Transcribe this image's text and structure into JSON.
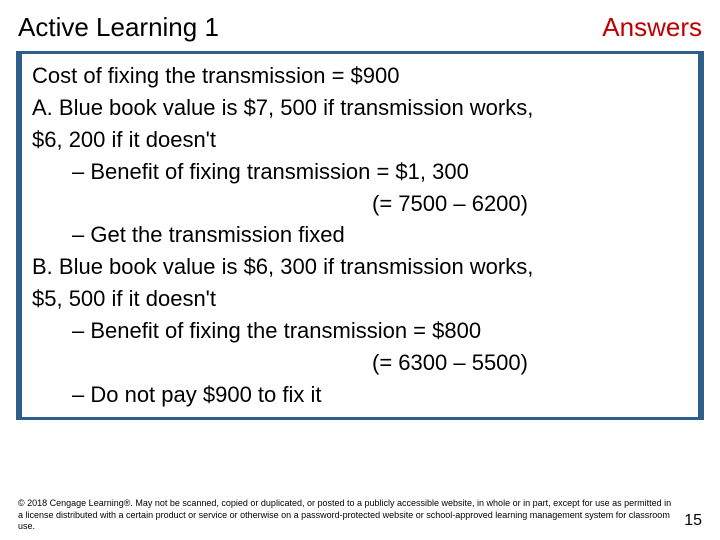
{
  "colors": {
    "answers_text": "#c00000",
    "box_border": "#2e5e8a",
    "background": "#ffffff",
    "body_text": "#000000"
  },
  "header": {
    "title_left": "Active Learning 1",
    "title_right": "Answers"
  },
  "content": {
    "lines": [
      {
        "text": "Cost of fixing the transmission = $900",
        "class": ""
      },
      {
        "text": "A. Blue book value is $7, 500 if transmission works,",
        "class": ""
      },
      {
        "text": "$6, 200 if it doesn't",
        "class": ""
      },
      {
        "text": "– Benefit of fixing transmission = $1, 300",
        "class": "indent1"
      },
      {
        "text": "(= 7500 – 6200)",
        "class": "calc"
      },
      {
        "text": "– Get the transmission fixed",
        "class": "indent1"
      },
      {
        "text": "B. Blue book value is $6, 300 if transmission works,",
        "class": ""
      },
      {
        "text": "$5, 500 if it doesn't",
        "class": ""
      },
      {
        "text": "– Benefit of fixing the transmission = $800",
        "class": "indent1"
      },
      {
        "text": "(= 6300 – 5500)",
        "class": "calc"
      },
      {
        "text": "– Do not pay $900 to fix it",
        "class": "indent1"
      }
    ]
  },
  "footer": {
    "copyright": "© 2018 Cengage Learning®. May not be scanned, copied or duplicated, or posted to a publicly accessible website, in whole or in part, except for use as permitted in a license distributed with a certain product or service or otherwise on a password-protected website or school-approved learning management system for classroom use.",
    "page_number": "15"
  }
}
